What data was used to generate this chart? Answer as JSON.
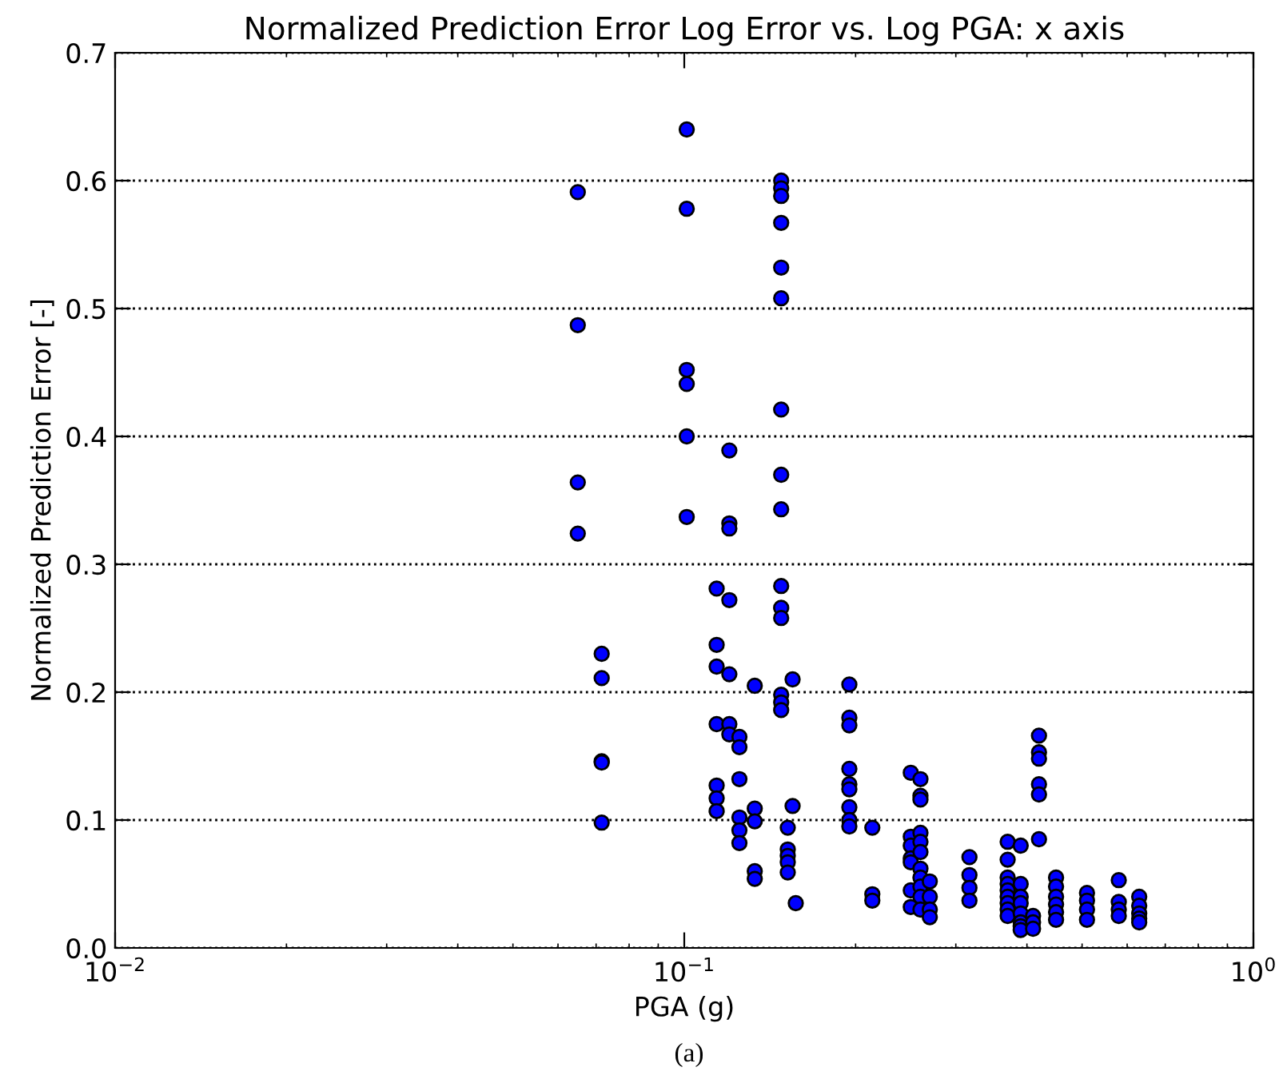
{
  "chart_data": {
    "type": "scatter",
    "title": "Normalized Prediction Error Log Error vs. Log PGA: x axis",
    "xlabel": "PGA (g)",
    "ylabel": "Normalized Prediction Error [-]",
    "annotations": [
      "(a)"
    ],
    "log": "x",
    "xlim": [
      0.01,
      1
    ],
    "xticks": [
      {
        "value": 0.01,
        "label": "10$^{−2}$"
      },
      {
        "value": 0.1,
        "label": "10$^{−1}$"
      },
      {
        "value": 1,
        "label": "10$^{0}$"
      }
    ],
    "ylim": [
      0,
      0.7
    ],
    "yticks": [
      {
        "value": 0,
        "label": "0.0"
      },
      0.1,
      0.2,
      0.3,
      0.4,
      0.5,
      0.6,
      0.7
    ],
    "grid": "y",
    "marker": "circle",
    "series": [
      {
        "color": "#0000ff",
        "x": [
          0.065,
          0.065,
          0.065,
          0.065,
          0.0716,
          0.0716,
          0.0716,
          0.0716,
          0.0716,
          0.101,
          0.101,
          0.101,
          0.101,
          0.101,
          0.101,
          0.114,
          0.114,
          0.114,
          0.114,
          0.114,
          0.114,
          0.114,
          0.12,
          0.12,
          0.12,
          0.12,
          0.12,
          0.12,
          0.12,
          0.125,
          0.125,
          0.125,
          0.125,
          0.125,
          0.125,
          0.133,
          0.133,
          0.133,
          0.133,
          0.133,
          0.148,
          0.148,
          0.148,
          0.148,
          0.148,
          0.148,
          0.148,
          0.148,
          0.148,
          0.148,
          0.148,
          0.148,
          0.148,
          0.148,
          0.148,
          0.152,
          0.152,
          0.152,
          0.152,
          0.152,
          0.155,
          0.155,
          0.157,
          0.195,
          0.195,
          0.195,
          0.195,
          0.195,
          0.195,
          0.195,
          0.195,
          0.195,
          0.214,
          0.214,
          0.214,
          0.25,
          0.25,
          0.25,
          0.25,
          0.25,
          0.25,
          0.25,
          0.26,
          0.26,
          0.26,
          0.26,
          0.26,
          0.26,
          0.26,
          0.26,
          0.26,
          0.26,
          0.26,
          0.27,
          0.27,
          0.27,
          0.27,
          0.317,
          0.317,
          0.317,
          0.317,
          0.37,
          0.37,
          0.37,
          0.37,
          0.37,
          0.37,
          0.37,
          0.37,
          0.37,
          0.39,
          0.39,
          0.39,
          0.39,
          0.39,
          0.39,
          0.39,
          0.39,
          0.41,
          0.41,
          0.41,
          0.42,
          0.42,
          0.42,
          0.42,
          0.42,
          0.42,
          0.45,
          0.45,
          0.45,
          0.45,
          0.45,
          0.45,
          0.51,
          0.51,
          0.51,
          0.51,
          0.58,
          0.58,
          0.58,
          0.58,
          0.63,
          0.63,
          0.63,
          0.63,
          0.63
        ],
        "values": [
          0.591,
          0.487,
          0.364,
          0.324,
          0.23,
          0.211,
          0.146,
          0.145,
          0.098,
          0.64,
          0.578,
          0.452,
          0.441,
          0.4,
          0.337,
          0.281,
          0.237,
          0.22,
          0.175,
          0.127,
          0.117,
          0.107,
          0.389,
          0.332,
          0.328,
          0.272,
          0.214,
          0.175,
          0.167,
          0.165,
          0.157,
          0.132,
          0.102,
          0.092,
          0.082,
          0.205,
          0.109,
          0.099,
          0.06,
          0.054,
          0.6,
          0.594,
          0.588,
          0.567,
          0.532,
          0.508,
          0.421,
          0.37,
          0.343,
          0.283,
          0.266,
          0.258,
          0.198,
          0.192,
          0.186,
          0.094,
          0.077,
          0.072,
          0.067,
          0.059,
          0.21,
          0.111,
          0.035,
          0.206,
          0.18,
          0.174,
          0.14,
          0.128,
          0.124,
          0.11,
          0.1,
          0.095,
          0.094,
          0.042,
          0.037,
          0.137,
          0.087,
          0.08,
          0.07,
          0.067,
          0.045,
          0.032,
          0.132,
          0.119,
          0.116,
          0.09,
          0.083,
          0.075,
          0.062,
          0.055,
          0.048,
          0.04,
          0.03,
          0.052,
          0.04,
          0.03,
          0.024,
          0.071,
          0.057,
          0.047,
          0.037,
          0.083,
          0.069,
          0.055,
          0.05,
          0.045,
          0.04,
          0.035,
          0.03,
          0.025,
          0.08,
          0.05,
          0.04,
          0.035,
          0.027,
          0.02,
          0.017,
          0.014,
          0.025,
          0.02,
          0.015,
          0.166,
          0.153,
          0.148,
          0.128,
          0.12,
          0.085,
          0.055,
          0.048,
          0.04,
          0.034,
          0.028,
          0.022,
          0.043,
          0.037,
          0.03,
          0.022,
          0.053,
          0.036,
          0.03,
          0.025,
          0.04,
          0.033,
          0.027,
          0.023,
          0.02
        ]
      }
    ]
  }
}
